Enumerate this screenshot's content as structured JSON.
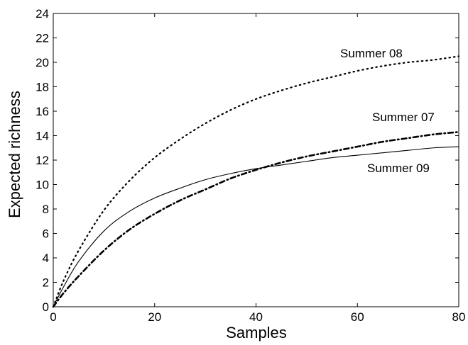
{
  "chart_data": {
    "type": "line",
    "title": "",
    "xlabel": "Samples",
    "ylabel": "Expected richness",
    "xlim": [
      0,
      80
    ],
    "ylim": [
      0,
      24
    ],
    "xticks": [
      0,
      20,
      40,
      60,
      80
    ],
    "yticks": [
      0,
      2,
      4,
      6,
      8,
      10,
      12,
      14,
      16,
      18,
      20,
      22,
      24
    ],
    "grid": false,
    "legend": "none",
    "series": [
      {
        "name": "Summer 08",
        "style": "dotted",
        "x": [
          0,
          2,
          5,
          10,
          15,
          20,
          25,
          30,
          35,
          40,
          45,
          50,
          55,
          60,
          65,
          70,
          75,
          80
        ],
        "values": [
          0,
          2.1,
          4.6,
          7.9,
          10.3,
          12.2,
          13.7,
          15.0,
          16.1,
          17.0,
          17.7,
          18.3,
          18.8,
          19.3,
          19.7,
          20.0,
          20.2,
          20.5
        ]
      },
      {
        "name": "Summer 07",
        "style": "dash-dot",
        "x": [
          0,
          2,
          5,
          10,
          15,
          20,
          25,
          30,
          35,
          40,
          45,
          50,
          55,
          60,
          65,
          70,
          75,
          80
        ],
        "values": [
          0,
          1.1,
          2.5,
          4.6,
          6.3,
          7.6,
          8.7,
          9.6,
          10.5,
          11.2,
          11.8,
          12.3,
          12.7,
          13.1,
          13.5,
          13.8,
          14.1,
          14.3
        ]
      },
      {
        "name": "Summer 09",
        "style": "solid",
        "x": [
          0,
          2,
          5,
          10,
          15,
          20,
          25,
          30,
          35,
          40,
          45,
          50,
          55,
          60,
          65,
          70,
          75,
          80
        ],
        "values": [
          0,
          1.6,
          3.7,
          6.2,
          7.8,
          8.9,
          9.7,
          10.4,
          10.9,
          11.3,
          11.6,
          11.9,
          12.2,
          12.4,
          12.6,
          12.8,
          13.0,
          13.1
        ]
      }
    ]
  }
}
